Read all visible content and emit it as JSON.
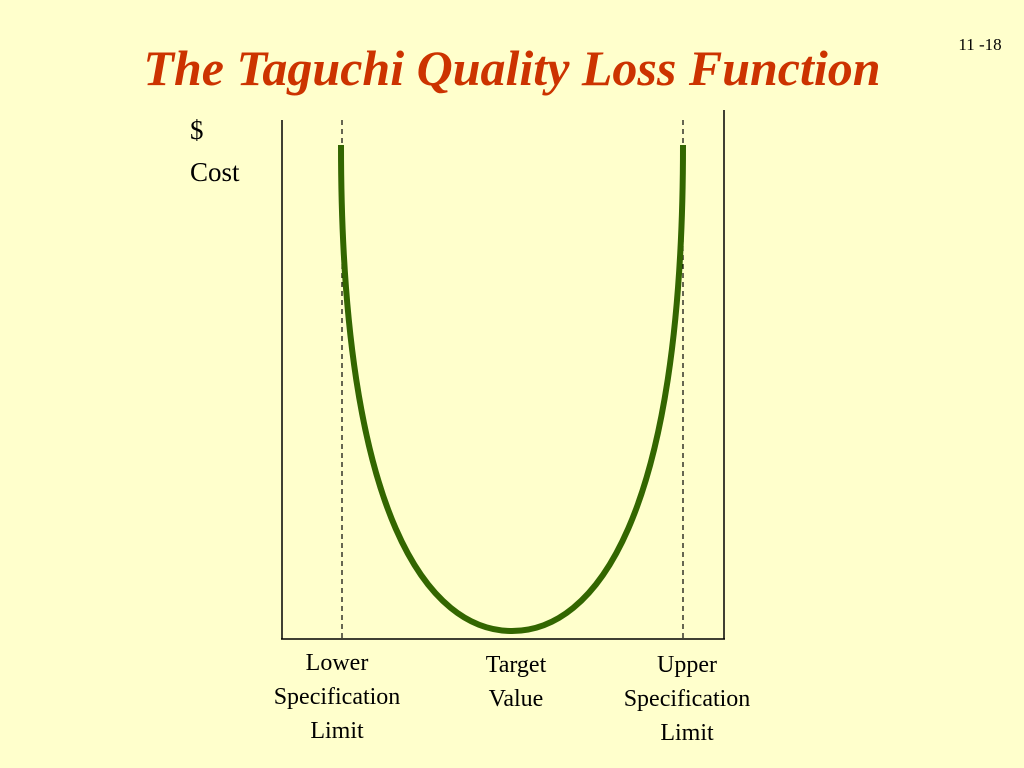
{
  "header": {
    "title": "The Taguchi Quality Loss Function",
    "slide_number": "11 -18"
  },
  "axis": {
    "y_label": [
      "$",
      "Cost"
    ]
  },
  "labels": [
    {
      "lines": [
        "Lower",
        "Specification",
        "Limit"
      ]
    },
    {
      "lines": [
        "Target",
        "Value"
      ]
    },
    {
      "lines": [
        "Upper",
        "Specification",
        "Limit"
      ]
    }
  ]
}
